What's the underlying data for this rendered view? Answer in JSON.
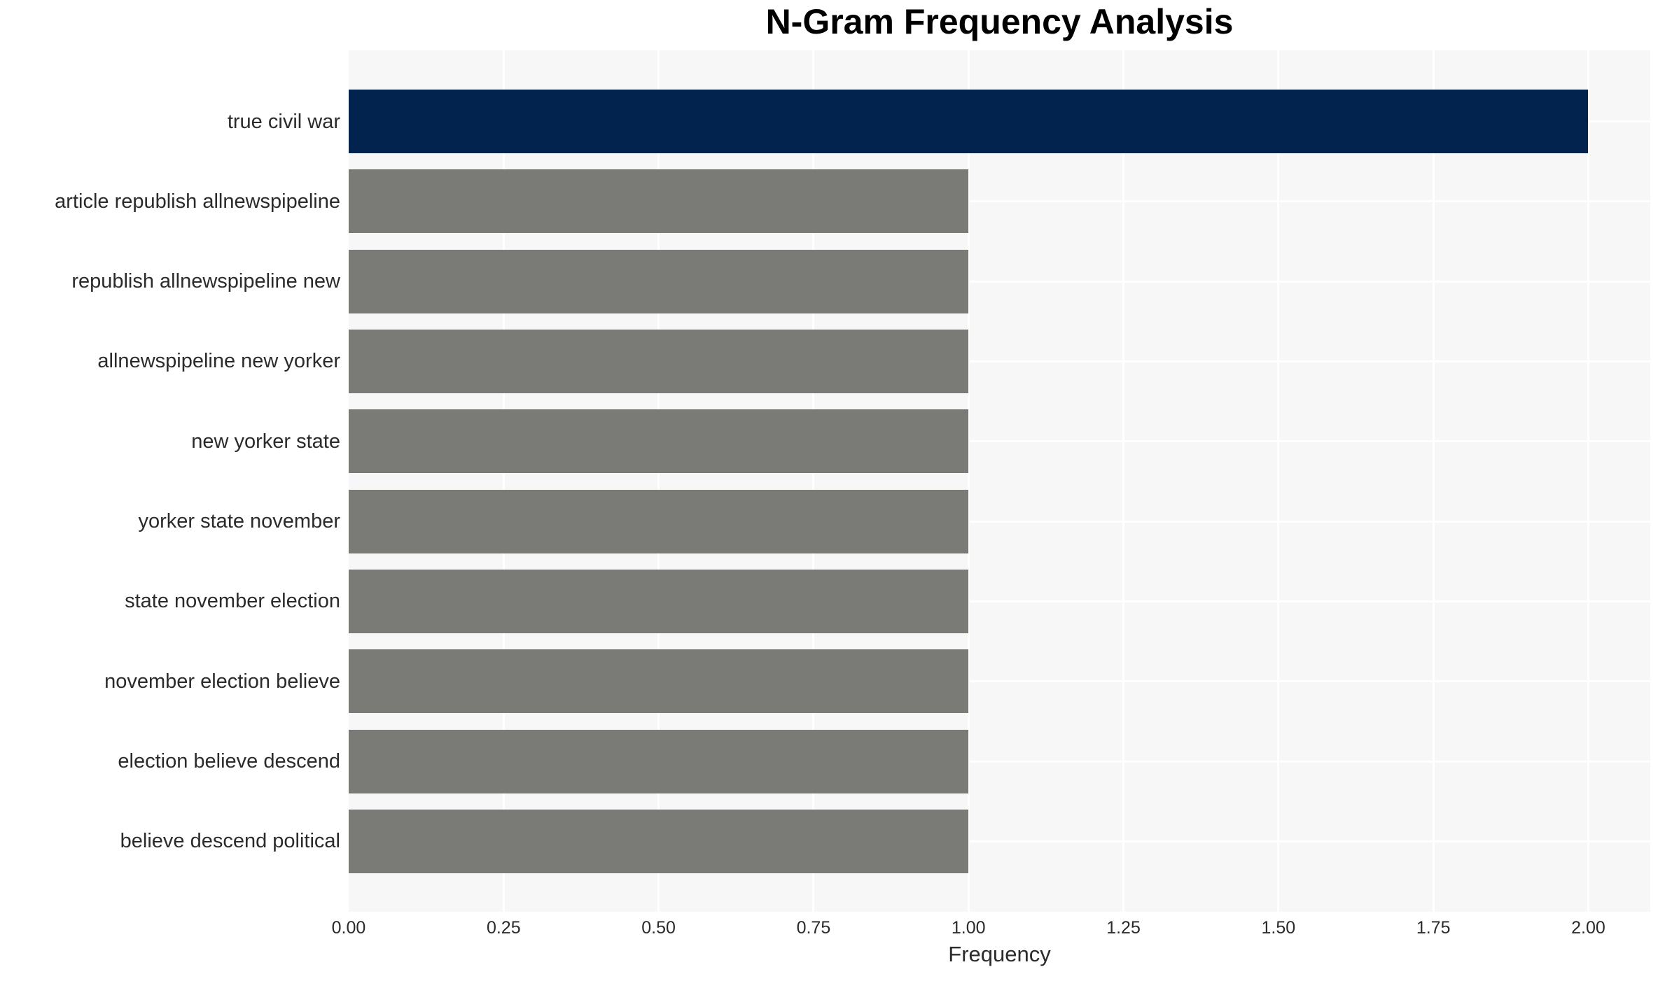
{
  "chart_data": {
    "type": "bar",
    "orientation": "horizontal",
    "title": "N-Gram Frequency Analysis",
    "xlabel": "Frequency",
    "ylabel": "",
    "categories": [
      "true civil war",
      "article republish allnewspipeline",
      "republish allnewspipeline new",
      "allnewspipeline new yorker",
      "new yorker state",
      "yorker state november",
      "state november election",
      "november election believe",
      "election believe descend",
      "believe descend political"
    ],
    "values": [
      2,
      1,
      1,
      1,
      1,
      1,
      1,
      1,
      1,
      1
    ],
    "bar_colors": [
      "#02234e",
      "#7a7b76",
      "#7a7b76",
      "#7a7b76",
      "#7a7b76",
      "#7a7b76",
      "#7a7b76",
      "#7a7b76",
      "#7a7b76",
      "#7a7b76"
    ],
    "xlim": [
      0,
      2.1
    ],
    "xticks": [
      0,
      0.25,
      0.5,
      0.75,
      1.0,
      1.25,
      1.5,
      1.75,
      2.0
    ],
    "xtick_labels": [
      "0.00",
      "0.25",
      "0.50",
      "0.75",
      "1.00",
      "1.25",
      "1.50",
      "1.75",
      "2.00"
    ],
    "grid": "on",
    "gridline_color": "#ffffff",
    "legend_position": "none",
    "colors": {
      "bar_highlight": "#02234e",
      "bar_default": "#7a7b76",
      "plot_background": "#f7f7f7",
      "figure_background": "#ffffff",
      "tick_text": "#2b2b2b",
      "title_text": "#000000"
    }
  }
}
